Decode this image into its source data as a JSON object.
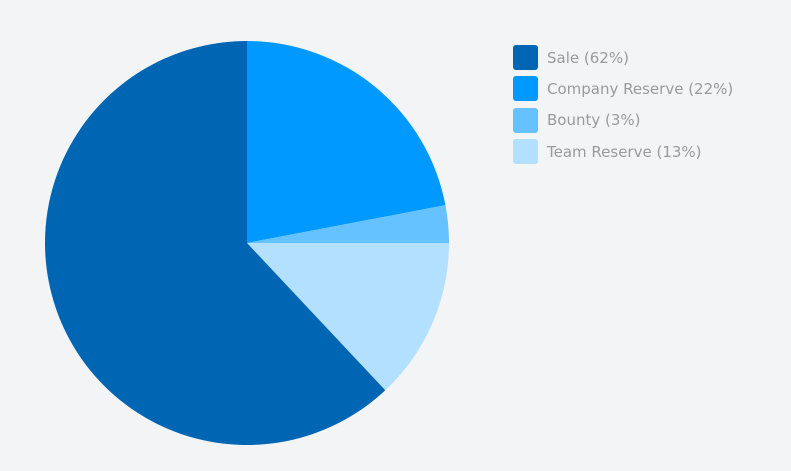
{
  "chart_data": {
    "type": "pie",
    "title": "",
    "start_angle_deg": 0,
    "direction": "clockwise",
    "slices": [
      {
        "name": "Sale",
        "label": "Sale (62%)",
        "value": 62,
        "color": "#0066b3"
      },
      {
        "name": "Company Reserve",
        "label": "Company Reserve (22%)",
        "value": 22,
        "color": "#0099ff"
      },
      {
        "name": "Bounty",
        "label": "Bounty (3%)",
        "value": 3,
        "color": "#66c2ff"
      },
      {
        "name": "Team Reserve",
        "label": "Team Reserve (13%)",
        "value": 13,
        "color": "#b3e0ff"
      }
    ],
    "draw_order": [
      "Company Reserve",
      "Bounty",
      "Team Reserve",
      "Sale"
    ],
    "legend_position": "top-right"
  }
}
